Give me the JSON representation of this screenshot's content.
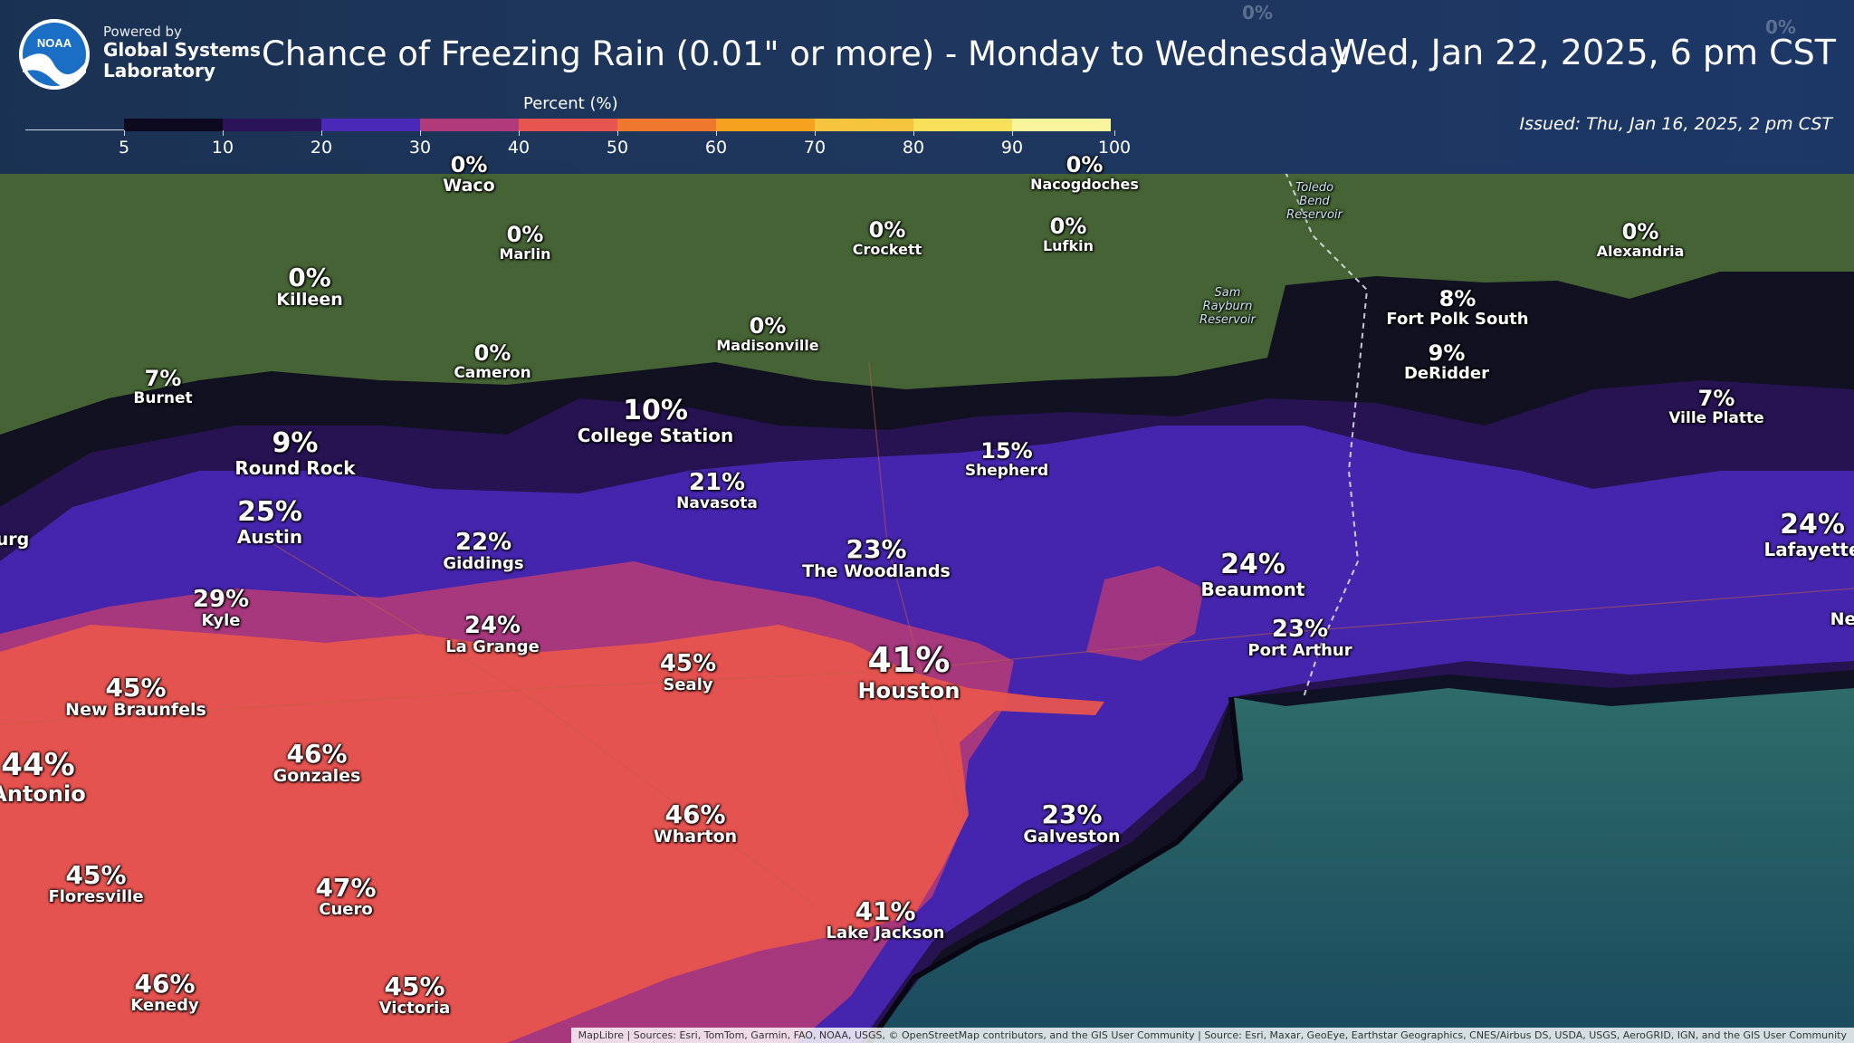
{
  "header": {
    "powered_by": "Powered by",
    "lab_line1": "Global Systems",
    "lab_line2": "Laboratory",
    "noaa_text": "NOAA",
    "title": "Chance of Freezing Rain (0.01\" or more) - Monday to Wednesday",
    "valid_time": "Wed, Jan 22, 2025, 6 pm CST",
    "issued": "Issued: Thu, Jan 16, 2025, 2 pm CST"
  },
  "legend": {
    "title": "Percent (%)",
    "ticks": [
      "5",
      "10",
      "20",
      "30",
      "40",
      "50",
      "60",
      "70",
      "80",
      "90",
      "100"
    ],
    "colors": [
      "#0d0a20",
      "#2a1358",
      "#4a28b8",
      "#b03a7a",
      "#e8544e",
      "#f0782e",
      "#f6a21e",
      "#f7c440",
      "#f8e05a",
      "#faf59c"
    ]
  },
  "cities": [
    {
      "name": "Waco",
      "pct": "0%"
    },
    {
      "name": "Nacogdoches",
      "pct": "0%"
    },
    {
      "name": "Marlin",
      "pct": "0%"
    },
    {
      "name": "Crockett",
      "pct": "0%"
    },
    {
      "name": "Lufkin",
      "pct": "0%"
    },
    {
      "name": "Alexandria",
      "pct": "0%"
    },
    {
      "name": "Killeen",
      "pct": "0%"
    },
    {
      "name": "Madisonville",
      "pct": "0%"
    },
    {
      "name": "Fort Polk South",
      "pct": "8%"
    },
    {
      "name": "Cameron",
      "pct": "0%"
    },
    {
      "name": "DeRidder",
      "pct": "9%"
    },
    {
      "name": "Burnet",
      "pct": "7%"
    },
    {
      "name": "College Station",
      "pct": "10%"
    },
    {
      "name": "Ville Platte",
      "pct": "7%"
    },
    {
      "name": "Round Rock",
      "pct": "9%"
    },
    {
      "name": "Shepherd",
      "pct": "15%"
    },
    {
      "name": "Navasota",
      "pct": "21%"
    },
    {
      "name": "Austin",
      "pct": "25%"
    },
    {
      "name": "Lafayette",
      "pct": "24%"
    },
    {
      "name": "Giddings",
      "pct": "22%"
    },
    {
      "name": "The Woodlands",
      "pct": "23%"
    },
    {
      "name": "Beaumont",
      "pct": "24%"
    },
    {
      "name": "Kyle",
      "pct": "29%"
    },
    {
      "name": "La Grange",
      "pct": "24%"
    },
    {
      "name": "Port Arthur",
      "pct": "23%"
    },
    {
      "name": "Sealy",
      "pct": "45%"
    },
    {
      "name": "Houston",
      "pct": "41%"
    },
    {
      "name": "New Braunfels",
      "pct": "45%"
    },
    {
      "name": "Gonzales",
      "pct": "46%"
    },
    {
      "name": "Antonio",
      "pct": "44%"
    },
    {
      "name": "Wharton",
      "pct": "46%"
    },
    {
      "name": "Galveston",
      "pct": "23%"
    },
    {
      "name": "Floresville",
      "pct": "45%"
    },
    {
      "name": "Cuero",
      "pct": "47%"
    },
    {
      "name": "Lake Jackson",
      "pct": "41%"
    },
    {
      "name": "Kenedy",
      "pct": "46%"
    },
    {
      "name": "Victoria",
      "pct": "45%"
    }
  ],
  "partial_labels": {
    "left_city": "urg",
    "right_city": "Ne"
  },
  "map_features": {
    "lake_toledo": "Toledo Bend Reservoir",
    "lake_sam_rayburn": "Sam Rayburn Reservoir"
  },
  "attribution": "MapLibre | Sources: Esri, TomTom, Garmin, FAO, NOAA, USGS, © OpenStreetMap contributors, and the GIS User Community | Source: Esri, Maxar, GeoEye, Earthstar Geographics, CNES/Airbus DS, USDA, USGS, AeroGRID, IGN, and the GIS User Community"
}
